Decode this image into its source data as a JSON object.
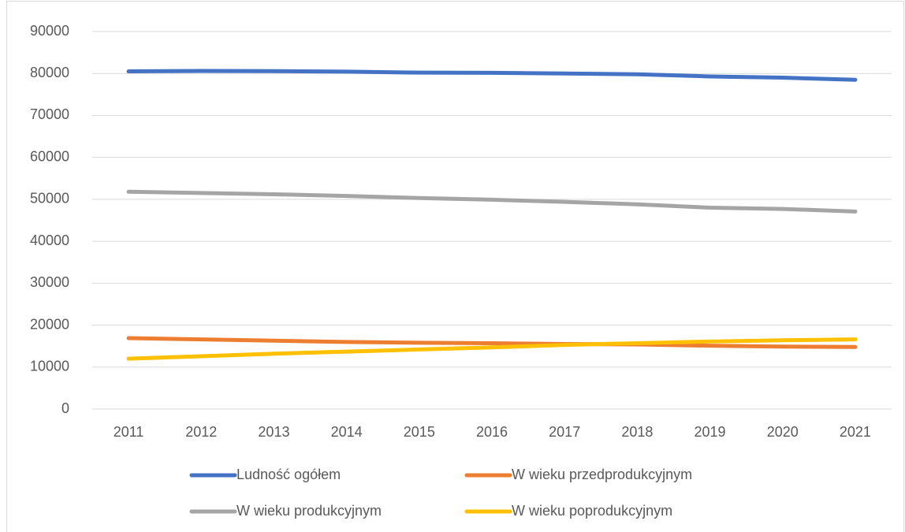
{
  "chart_data": {
    "type": "line",
    "categories": [
      "2011",
      "2012",
      "2013",
      "2014",
      "2015",
      "2016",
      "2017",
      "2018",
      "2019",
      "2020",
      "2021"
    ],
    "series": [
      {
        "name": "Ludność ogółem",
        "color": "#4472C4",
        "values": [
          80500,
          80600,
          80550,
          80450,
          80200,
          80150,
          80000,
          79800,
          79300,
          79000,
          78500
        ]
      },
      {
        "name": "W wieku przedprodukcyjnym",
        "color": "#ED7D31",
        "values": [
          16900,
          16600,
          16300,
          16000,
          15800,
          15700,
          15500,
          15400,
          15100,
          14900,
          14800
        ]
      },
      {
        "name": "W wieku produkcyjnym",
        "color": "#A5A5A5",
        "values": [
          51800,
          51500,
          51200,
          50800,
          50300,
          49900,
          49400,
          48800,
          48000,
          47700,
          47100
        ]
      },
      {
        "name": "W wieku poprodukcyjnym",
        "color": "#FFC000",
        "values": [
          12000,
          12600,
          13200,
          13700,
          14200,
          14700,
          15300,
          15700,
          16100,
          16400,
          16600
        ]
      }
    ],
    "ylim": [
      0,
      90000
    ],
    "yticks": [
      0,
      10000,
      20000,
      30000,
      40000,
      50000,
      60000,
      70000,
      80000,
      90000
    ],
    "grid": true,
    "legend": "bottom"
  }
}
